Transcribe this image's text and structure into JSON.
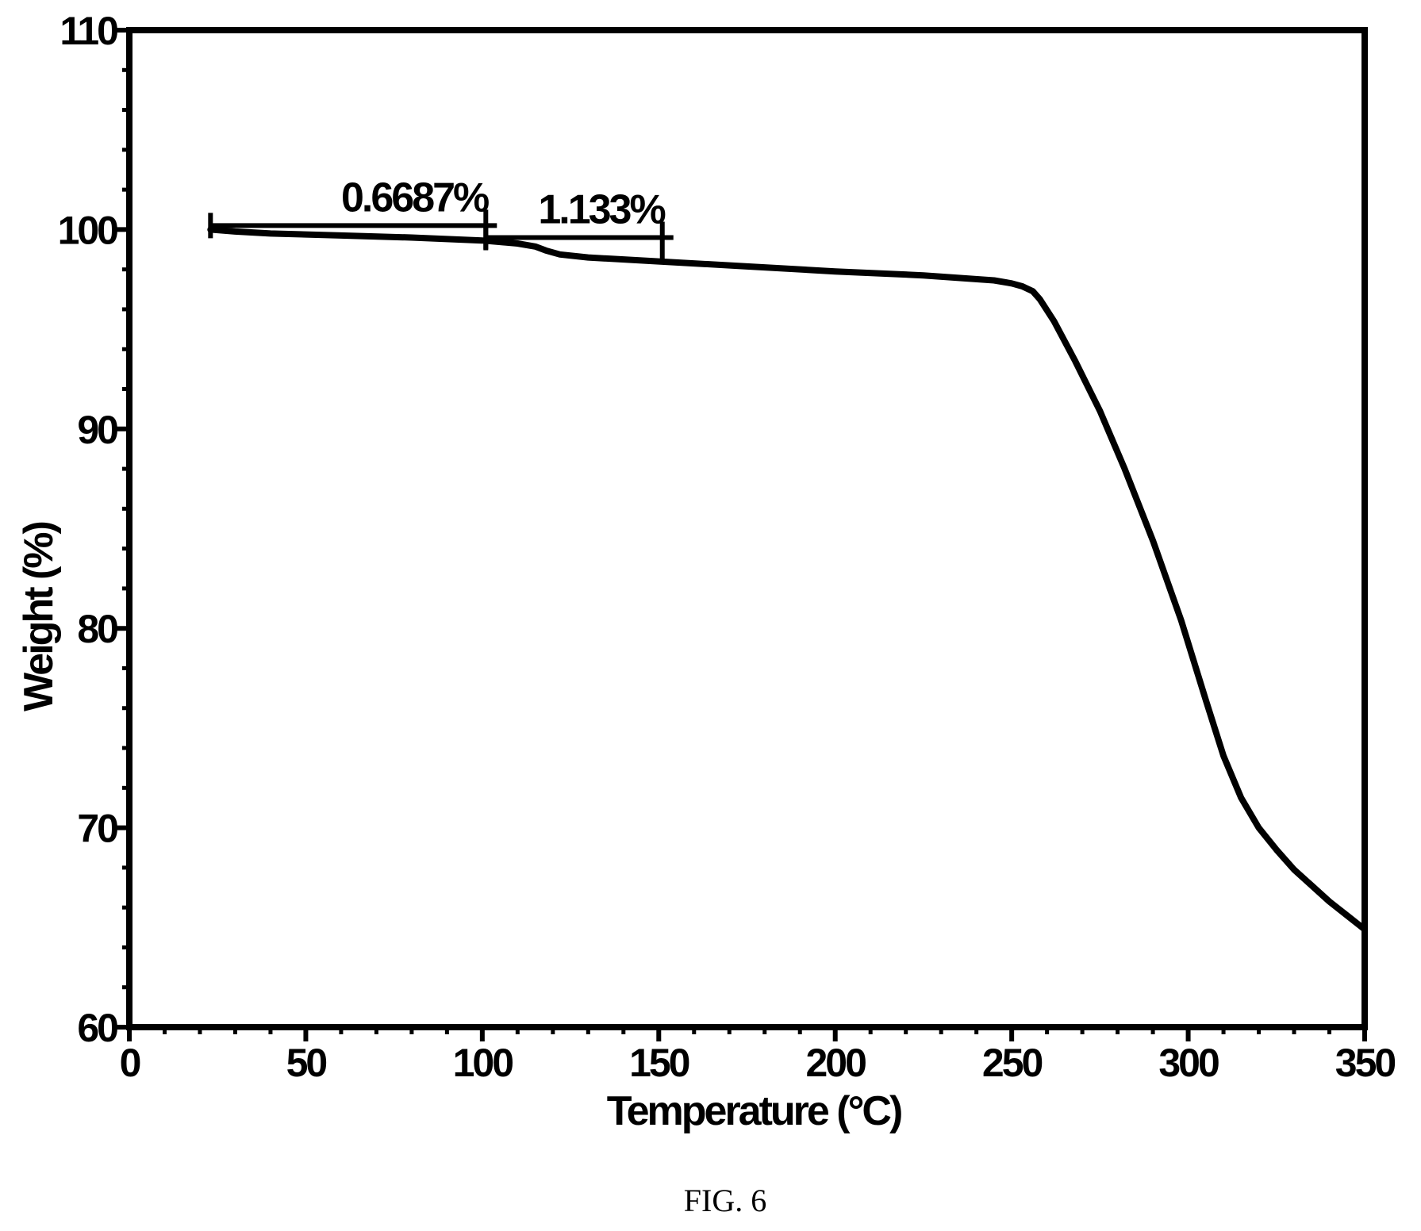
{
  "chart_data": {
    "type": "line",
    "title": "",
    "xlabel": "Temperature (°C)",
    "ylabel": "Weight (%)",
    "xlim": [
      0,
      350
    ],
    "ylim": [
      60,
      110
    ],
    "x_ticks": [
      0,
      50,
      100,
      150,
      200,
      250,
      300,
      350
    ],
    "x_tick_labels": [
      "0",
      "50",
      "100",
      "150",
      "200",
      "250",
      "300",
      "350"
    ],
    "y_ticks": [
      60,
      70,
      80,
      90,
      100,
      110
    ],
    "y_tick_labels": [
      "60",
      "70",
      "80",
      "90",
      "100",
      "110"
    ],
    "x_minor_step": 10,
    "y_minor_step": 2,
    "grid": false,
    "series": [
      {
        "color": "#000000",
        "x": [
          23,
          30,
          40,
          60,
          80,
          100,
          110,
          115,
          118,
          122,
          130,
          150,
          175,
          200,
          225,
          245,
          250,
          253,
          256,
          258,
          262,
          268,
          275,
          282,
          290,
          298,
          305,
          310,
          315,
          320,
          325,
          330,
          335,
          340,
          345,
          350
        ],
        "y": [
          100.0,
          99.9,
          99.8,
          99.7,
          99.6,
          99.45,
          99.3,
          99.15,
          98.95,
          98.75,
          98.6,
          98.4,
          98.15,
          97.9,
          97.7,
          97.45,
          97.3,
          97.15,
          96.9,
          96.5,
          95.4,
          93.4,
          90.9,
          88.0,
          84.4,
          80.4,
          76.4,
          73.6,
          71.5,
          70.0,
          68.9,
          67.9,
          67.1,
          66.3,
          65.6,
          64.9
        ]
      }
    ],
    "annotations": [
      {
        "text": "0.6687%",
        "x1": 23,
        "x2": 101,
        "y": 100.2
      },
      {
        "text": "1.133%",
        "x1": 101,
        "x2": 151,
        "y": 99.6
      }
    ]
  },
  "caption": "FIG. 6"
}
